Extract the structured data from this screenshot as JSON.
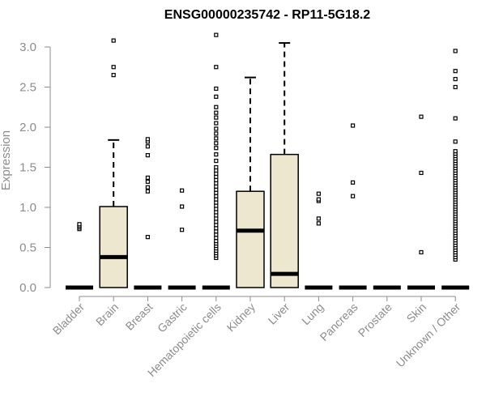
{
  "chart_data": {
    "type": "box",
    "title": "ENSG00000235742 - RP11-5G18.2",
    "xlabel": "",
    "ylabel": "Expression",
    "ylim": [
      0,
      3.2
    ],
    "yticks": [
      "0.0",
      "0.5",
      "1.0",
      "1.5",
      "2.0",
      "2.5",
      "3.0"
    ],
    "colors": {
      "box_fill": "#ede7cf",
      "box_line": "#000000",
      "axis": "#8c8c8c"
    },
    "categories": [
      {
        "name": "Bladder",
        "q1": 0,
        "median": 0,
        "q3": 0,
        "whisker_low": 0,
        "whisker_high": 0,
        "outliers": [
          0.73,
          0.75,
          0.77,
          0.79
        ]
      },
      {
        "name": "Brain",
        "q1": 0,
        "median": 0.38,
        "q3": 1.01,
        "whisker_low": 0,
        "whisker_high": 1.84,
        "outliers": [
          2.65,
          2.75,
          3.08
        ]
      },
      {
        "name": "Breast",
        "q1": 0,
        "median": 0,
        "q3": 0,
        "whisker_low": 0,
        "whisker_high": 0,
        "outliers": [
          0.63,
          1.2,
          1.25,
          1.32,
          1.37,
          1.65,
          1.76,
          1.82,
          1.85
        ]
      },
      {
        "name": "Gastric",
        "q1": 0,
        "median": 0,
        "q3": 0,
        "whisker_low": 0,
        "whisker_high": 0,
        "outliers": [
          0.72,
          1.01,
          1.21
        ]
      },
      {
        "name": "Hematopoietic cells",
        "q1": 0,
        "median": 0,
        "q3": 0,
        "whisker_low": 0,
        "whisker_high": 0,
        "outliers": [
          0.37,
          0.4,
          0.43,
          0.46,
          0.49,
          0.52,
          0.55,
          0.58,
          0.62,
          0.66,
          0.7,
          0.74,
          0.78,
          0.82,
          0.86,
          0.9,
          0.94,
          0.98,
          1.02,
          1.06,
          1.1,
          1.14,
          1.18,
          1.22,
          1.26,
          1.3,
          1.34,
          1.38,
          1.42,
          1.46,
          1.5,
          1.58,
          1.66,
          1.74,
          1.8,
          1.86,
          1.92,
          1.98,
          2.05,
          2.12,
          2.18,
          2.25,
          2.38,
          2.48,
          2.75,
          3.15
        ]
      },
      {
        "name": "Kidney",
        "q1": 0,
        "median": 0.71,
        "q3": 1.2,
        "whisker_low": 0,
        "whisker_high": 2.62,
        "outliers": []
      },
      {
        "name": "Liver",
        "q1": 0,
        "median": 0.17,
        "q3": 1.66,
        "whisker_low": 0,
        "whisker_high": 3.05,
        "outliers": []
      },
      {
        "name": "Lung",
        "q1": 0,
        "median": 0,
        "q3": 0,
        "whisker_low": 0,
        "whisker_high": 0,
        "outliers": [
          0.8,
          0.86,
          1.08,
          1.1,
          1.17
        ]
      },
      {
        "name": "Pancreas",
        "q1": 0,
        "median": 0,
        "q3": 0,
        "whisker_low": 0,
        "whisker_high": 0,
        "outliers": [
          1.14,
          1.31,
          2.02
        ]
      },
      {
        "name": "Prostate",
        "q1": 0,
        "median": 0,
        "q3": 0,
        "whisker_low": 0,
        "whisker_high": 0,
        "outliers": []
      },
      {
        "name": "Skin",
        "q1": 0,
        "median": 0,
        "q3": 0,
        "whisker_low": 0,
        "whisker_high": 0,
        "outliers": [
          0.44,
          1.43,
          2.13
        ]
      },
      {
        "name": "Unknown / Other",
        "q1": 0,
        "median": 0,
        "q3": 0,
        "whisker_low": 0,
        "whisker_high": 0,
        "outliers": [
          0.35,
          0.38,
          0.41,
          0.44,
          0.47,
          0.5,
          0.53,
          0.56,
          0.59,
          0.62,
          0.65,
          0.68,
          0.71,
          0.74,
          0.77,
          0.8,
          0.83,
          0.86,
          0.89,
          0.92,
          0.95,
          0.98,
          1.01,
          1.04,
          1.07,
          1.1,
          1.13,
          1.16,
          1.19,
          1.22,
          1.25,
          1.28,
          1.31,
          1.34,
          1.37,
          1.4,
          1.43,
          1.46,
          1.49,
          1.52,
          1.55,
          1.58,
          1.61,
          1.64,
          1.67,
          1.7,
          1.82,
          2.11,
          2.5,
          2.6,
          2.7,
          2.95
        ]
      }
    ]
  }
}
